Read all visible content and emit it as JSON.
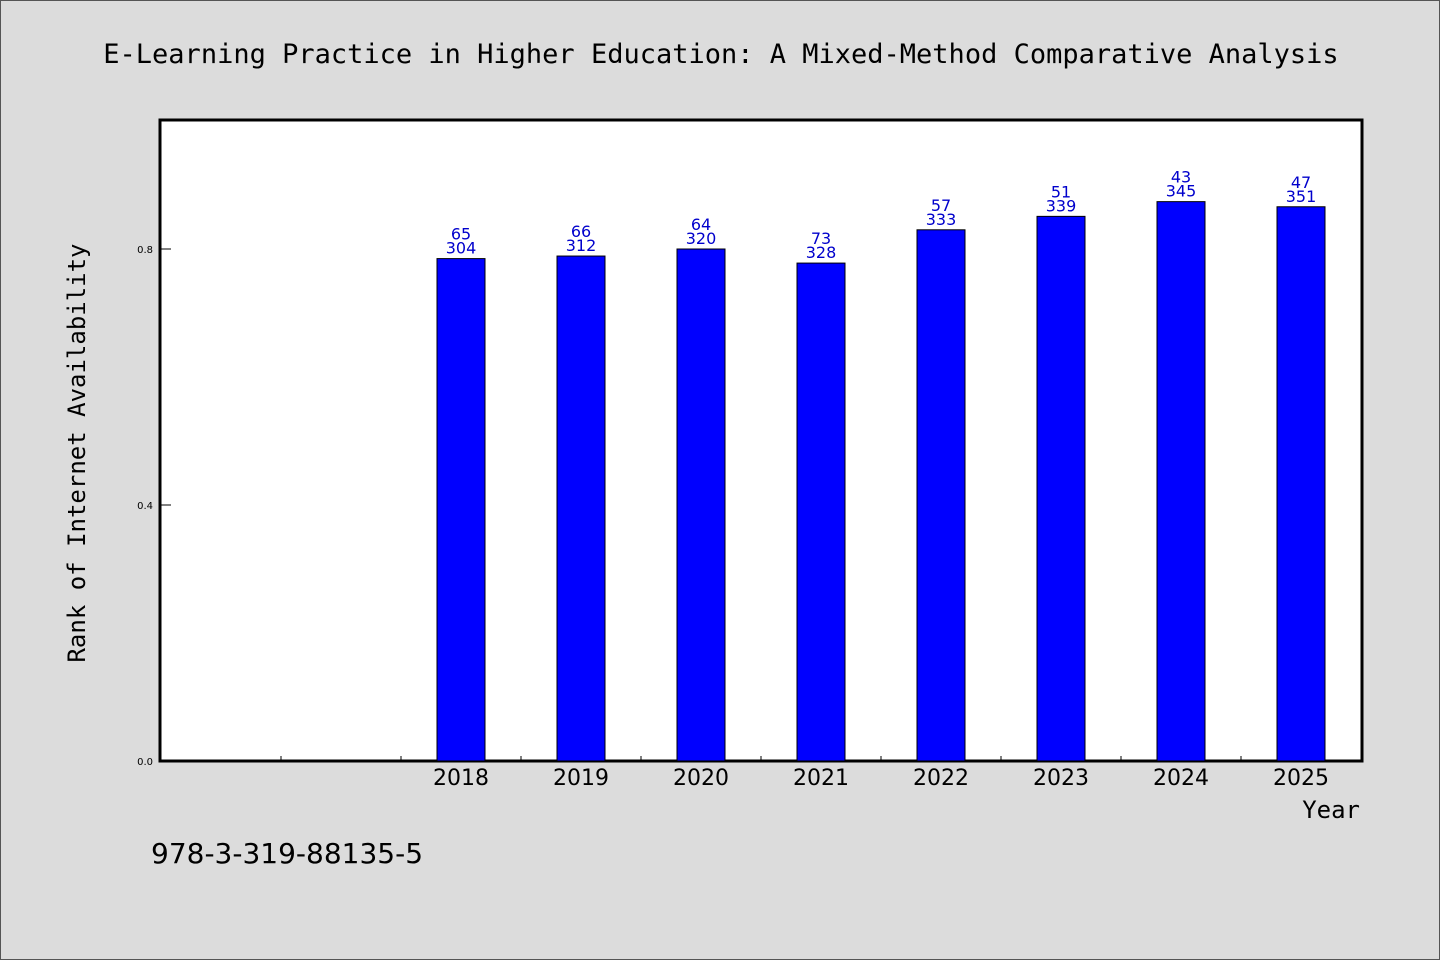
{
  "chart_data": {
    "type": "bar",
    "title": "E-Learning Practice in Higher Education: A Mixed-Method Comparative Analysis",
    "xlabel": "Year",
    "ylabel": "Rank of Internet Availability",
    "categories": [
      "",
      "",
      "2018",
      "2019",
      "2020",
      "2021",
      "2022",
      "2023",
      "2024",
      "2025"
    ],
    "values": [
      null,
      null,
      0.785,
      0.789,
      0.8,
      0.778,
      0.83,
      0.851,
      0.874,
      0.866
    ],
    "bar_labels_top": [
      "",
      "",
      "65",
      "66",
      "64",
      "73",
      "57",
      "51",
      "43",
      "47"
    ],
    "bar_labels_bottom": [
      "",
      "",
      "304",
      "312",
      "320",
      "328",
      "333",
      "339",
      "345",
      "351"
    ],
    "yticks": [
      "0.0",
      "0.4",
      "0.8"
    ],
    "ytick_values": [
      0.0,
      0.4,
      0.8
    ],
    "ylim": [
      0,
      1.0
    ],
    "grid": false,
    "bar_color": "#0000ff",
    "label_color": "#0000cc"
  },
  "footer": {
    "isbn": "978-3-319-88135-5"
  }
}
